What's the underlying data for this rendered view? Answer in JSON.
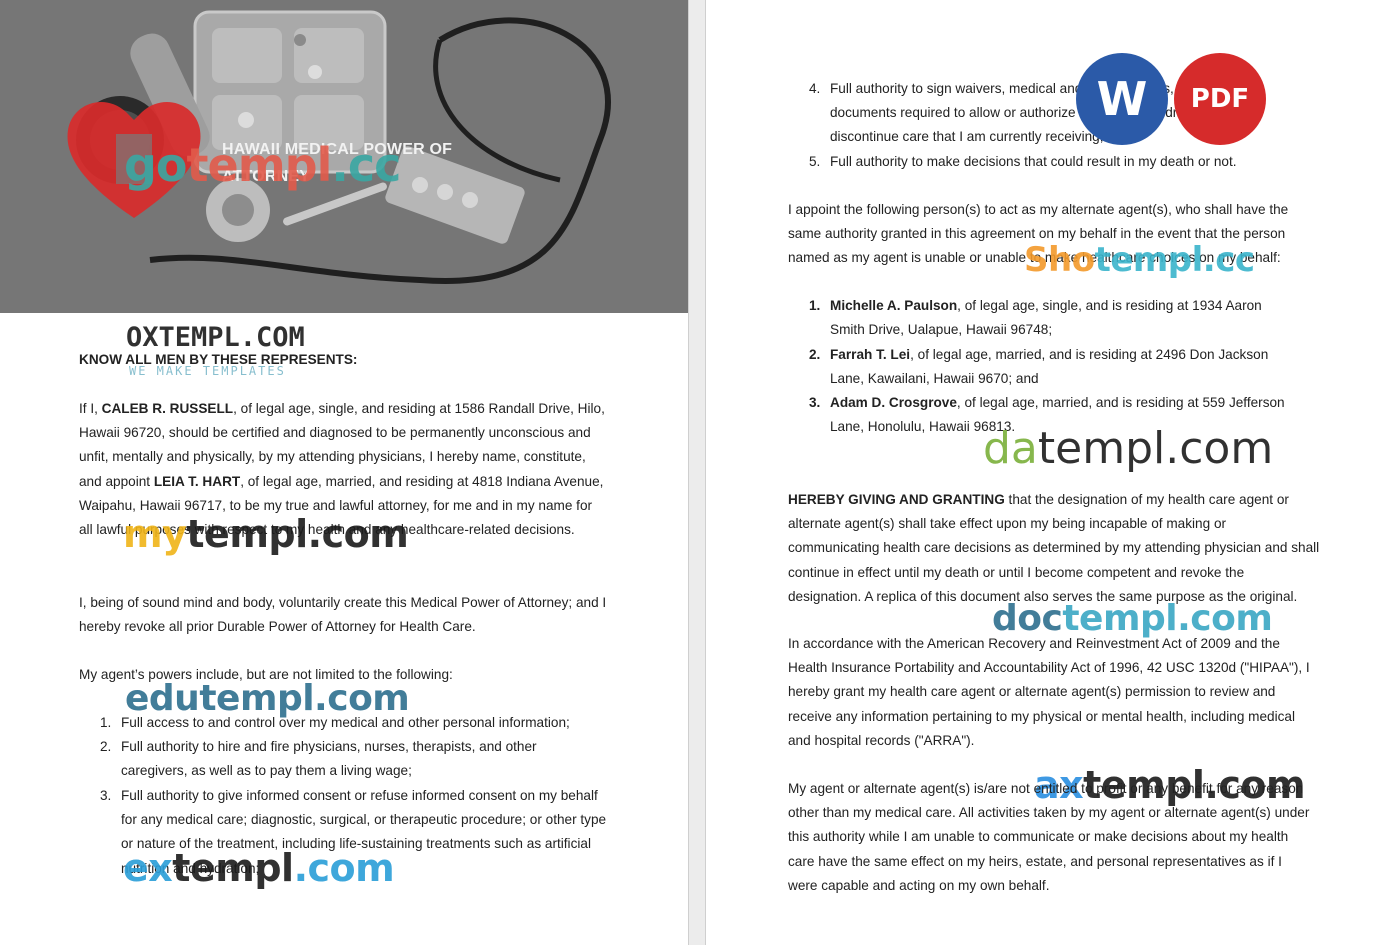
{
  "header": {
    "title_line1": "HAWAII MEDICAL POWER OF",
    "title_line2": "ATTORNEY"
  },
  "left": {
    "heading": "KNOW ALL MEN BY THESE REPRESENTS:",
    "p1": {
      "a": "If I, ",
      "name1": "CALEB R. RUSSELL",
      "b": ", of legal age, single, and residing at 1586 Randall Drive, Hilo, Hawaii 96720, should be certified and diagnosed to be permanently unconscious and unfit, mentally and physically, by my attending physicians, I hereby name, constitute, and appoint ",
      "name2": "LEIA T. HART",
      "c": ", of legal age, married, and residing at 4818 Indiana Avenue, Waipahu, Hawaii 96717, to be my true and lawful attorney, for me and in my name for all lawful purposes with respect to my health and any healthcare-related decisions."
    },
    "p2": "I, being of sound mind and body, voluntarily create this Medical Power of Attorney; and I hereby revoke all prior Durable Power of Attorney for Health Care.",
    "p3": "My agent’s powers include, but are not limited to the following:",
    "powers": [
      {
        "num": "1.",
        "text": "Full access to and control over my medical and other personal information;"
      },
      {
        "num": "2.",
        "text": "Full authority to hire and fire physicians, nurses, therapists, and other caregivers, as well as to pay them a living wage;"
      },
      {
        "num": "3.",
        "text": "Full authority to give informed consent or refuse informed consent on my behalf for any medical care; diagnostic, surgical, or therapeutic procedure; or other type or nature of the treatment, including life-sustaining treatments such as artificial nutrition and hydration;"
      }
    ]
  },
  "right": {
    "powers_cont": [
      {
        "num": "4.",
        "text": "Full authority to sign waivers, medical and legal releases, and other documents required to allow or authorize the delay, withdrawal, or to discontinue care that I am currently receiving;"
      },
      {
        "num": "5.",
        "text": "Full authority to make decisions that could result in my death or not."
      }
    ],
    "p_alt": "I appoint the following person(s) to act as my alternate agent(s), who shall have the same authority granted in this agreement on my behalf in the event that the person named as my agent is unable or unable to make healthcare choices on my behalf:",
    "alternates": [
      {
        "num": "1.",
        "name": "Michelle A. Paulson",
        "rest": ", of legal age, single, and is residing at 1934 Aaron Smith Drive, Ualapue, Hawaii 96748;"
      },
      {
        "num": "2.",
        "name": "Farrah T. Lei",
        "rest": ", of legal age, married, and is residing at 2496 Don Jackson Lane, Kawailani, Hawaii 9670; and"
      },
      {
        "num": "3.",
        "name": "Adam D. Crosgrove",
        "rest": ", of legal age, married, and is residing at 559 Jefferson Lane, Honolulu, Hawaii 96813."
      }
    ],
    "p_grant_bold": "HEREBY GIVING AND GRANTING",
    "p_grant": " that the designation of my health care agent or alternate agent(s) shall take effect upon my being incapable of making or communicating health care decisions as determined by my attending physician and shall continue in effect until my death or until I become competent and revoke the designation. A replica of this document also serves the same purpose as the original.",
    "p_hipaa": "In accordance with the American Recovery and Reinvestment Act of 2009 and the Health Insurance Portability and Accountability Act of 1996, 42 USC 1320d (\"HIPAA\"), I hereby grant my health care agent or alternate agent(s) permission to review and receive any information pertaining to my physical or mental health, including medical and hospital records (\"ARRA\").",
    "p_liab": "My agent or alternate agent(s) is/are not entitled to profit or any benefit for any reason other than my medical care. All activities taken by my agent or alternate agent(s) under this authority while I am unable to communicate or make decisions about my health care have the same effect on my heirs, estate, and personal representatives as if I were capable and acting on my own behalf."
  },
  "badges": {
    "word": "W",
    "pdf": "PDF"
  },
  "watermarks": {
    "gotempl_a": "go",
    "gotempl_b": "templ",
    "gotempl_c": ".cc",
    "oxtempl": "OXTEMPL.COM",
    "oxtempl_sub": "WE MAKE TEMPLATES",
    "mytempl_a": "my",
    "mytempl_b": "templ.com",
    "edutempl": "edutempl.com",
    "extempl_a": "ex",
    "extempl_b": "templ",
    "extempl_c": ".com",
    "shotempl_a": "Sho",
    "shotempl_b": "templ.cc",
    "datempl_a": "da",
    "datempl_b": "templ.com",
    "doctempl_a": "doc",
    "doctempl_b": "templ.com",
    "axtempl_a": "ax",
    "axtempl_b": "templ.com"
  }
}
